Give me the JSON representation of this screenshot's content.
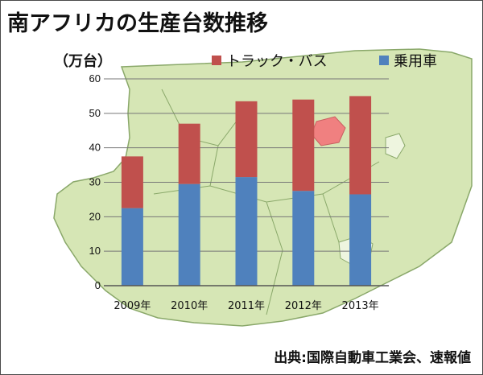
{
  "title": "南アフリカの生産台数推移",
  "unit_label": "（万台）",
  "source": "出典:国際自動車工業会、速報値",
  "colors": {
    "truck_bus": "#c0504d",
    "passenger": "#4f81bd",
    "map_fill": "#d6e6b5",
    "map_border": "#8aa86a",
    "highlight": "#f08080",
    "grid": "#777777"
  },
  "chart_data": {
    "type": "bar",
    "stacked": true,
    "categories": [
      "2009年",
      "2010年",
      "2011年",
      "2012年",
      "2013年"
    ],
    "series": [
      {
        "name": "乗用車",
        "values": [
          22.5,
          29.5,
          31.5,
          27.5,
          26.5
        ]
      },
      {
        "name": "トラック・バス",
        "values": [
          15.0,
          17.5,
          22.0,
          26.5,
          28.5
        ]
      }
    ],
    "ylim": [
      0,
      60
    ],
    "yticks": [
      0,
      10,
      20,
      30,
      40,
      50,
      60
    ],
    "grid": true,
    "legend": "top",
    "title": "南アフリカの生産台数推移",
    "ylabel": "（万台）",
    "xlabel": ""
  }
}
